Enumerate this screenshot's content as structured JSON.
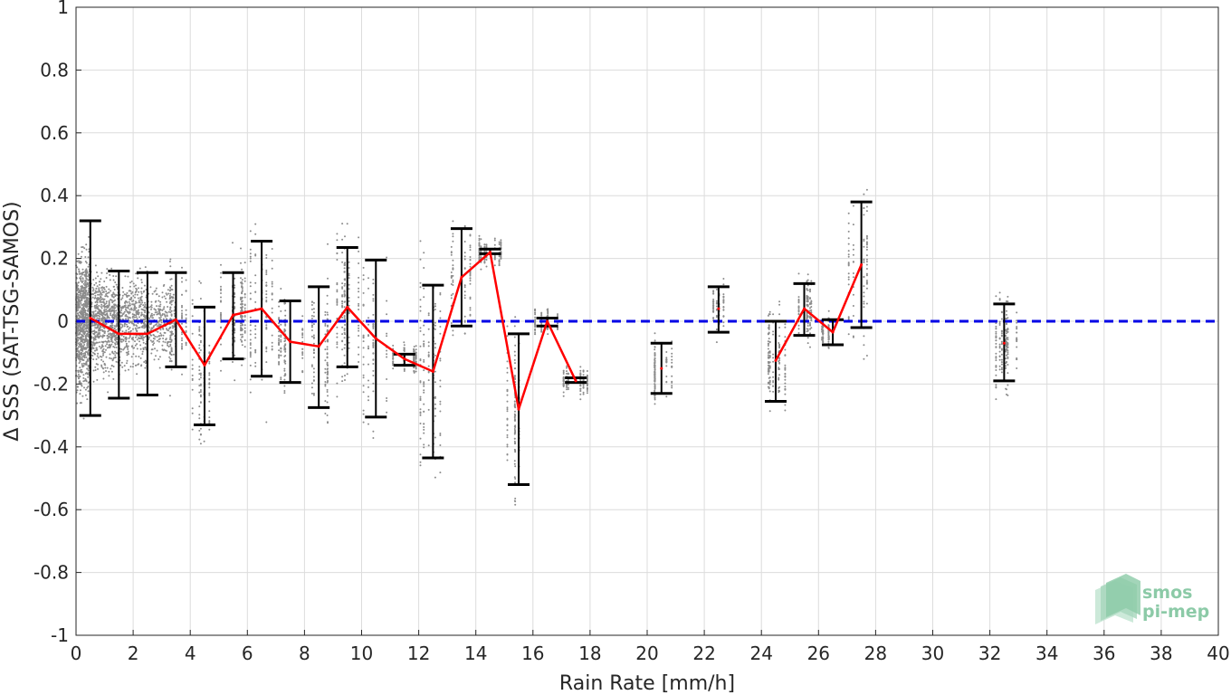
{
  "chart_data": {
    "type": "scatter",
    "title": "",
    "xlabel": "Rain Rate [mm/h]",
    "ylabel": "Δ SSS (SAT-TSG-SAMOS)",
    "xlim": [
      0,
      40
    ],
    "ylim": [
      -1,
      1
    ],
    "x_ticks": [
      0,
      2,
      4,
      6,
      8,
      10,
      12,
      14,
      16,
      18,
      20,
      22,
      24,
      26,
      28,
      30,
      32,
      34,
      36,
      38,
      40
    ],
    "y_ticks": [
      1,
      0.8,
      0.6,
      0.4,
      0.2,
      0,
      -0.2,
      -0.4,
      -0.6,
      -0.8,
      -1
    ],
    "y_tick_labels": [
      "1",
      "0.8",
      "0.6",
      "0.4",
      "0.2",
      "0",
      "-0.2",
      "-0.4",
      "-0.6",
      "-0.8",
      "-1"
    ],
    "grid": true,
    "colors": {
      "scatter": "#8c8c8c",
      "mean": "#ff0000",
      "errorbar": "#000000",
      "reference": "#0000e6",
      "grid": "#dcdcdc"
    },
    "reference_line": {
      "y": 0,
      "style": "dashed"
    },
    "series": [
      {
        "kind": "mean_with_errorbars",
        "x": [
          0.5,
          1.5,
          2.5,
          3.5,
          4.5,
          5.5,
          6.5,
          7.5,
          8.5,
          9.5,
          10.5,
          11.5,
          12.5,
          13.5,
          14.5,
          15.5,
          16.5,
          17.5,
          20.5,
          22.5,
          24.5,
          25.5,
          26.5,
          27.5,
          32.5
        ],
        "mean": [
          0.01,
          -0.04,
          -0.04,
          0.005,
          -0.14,
          0.02,
          0.04,
          -0.065,
          -0.08,
          0.045,
          -0.055,
          -0.12,
          -0.16,
          0.14,
          0.22,
          -0.28,
          0.0,
          -0.19,
          -0.15,
          0.04,
          -0.125,
          0.04,
          -0.035,
          0.18,
          -0.07
        ],
        "upper": [
          0.32,
          0.16,
          0.155,
          0.155,
          0.045,
          0.155,
          0.255,
          0.065,
          0.11,
          0.235,
          0.195,
          -0.105,
          0.115,
          0.295,
          0.23,
          -0.04,
          0.01,
          -0.18,
          -0.07,
          0.11,
          0.0,
          0.12,
          0.005,
          0.38,
          0.055
        ],
        "lower": [
          -0.3,
          -0.245,
          -0.235,
          -0.145,
          -0.33,
          -0.12,
          -0.175,
          -0.195,
          -0.275,
          -0.145,
          -0.305,
          -0.14,
          -0.435,
          -0.015,
          0.215,
          -0.52,
          -0.015,
          -0.195,
          -0.23,
          -0.035,
          -0.255,
          -0.045,
          -0.075,
          -0.02,
          -0.19
        ],
        "connected_segments": [
          [
            0,
            17
          ],
          [
            20,
            23
          ]
        ]
      }
    ]
  },
  "logo": {
    "line1": "smos",
    "line2": "pi-mep"
  }
}
